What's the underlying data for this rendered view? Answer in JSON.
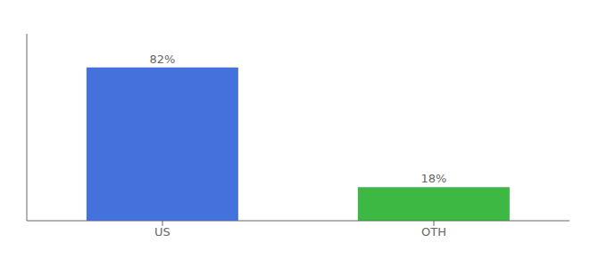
{
  "chart_data": {
    "type": "bar",
    "categories": [
      "US",
      "OTH"
    ],
    "values": [
      82,
      18
    ],
    "value_labels": [
      "82%",
      "18%"
    ],
    "colors": [
      "#4472dd",
      "#3cb843"
    ],
    "ylim": [
      0,
      100
    ],
    "data_labels": true,
    "tick_labels": "x"
  }
}
